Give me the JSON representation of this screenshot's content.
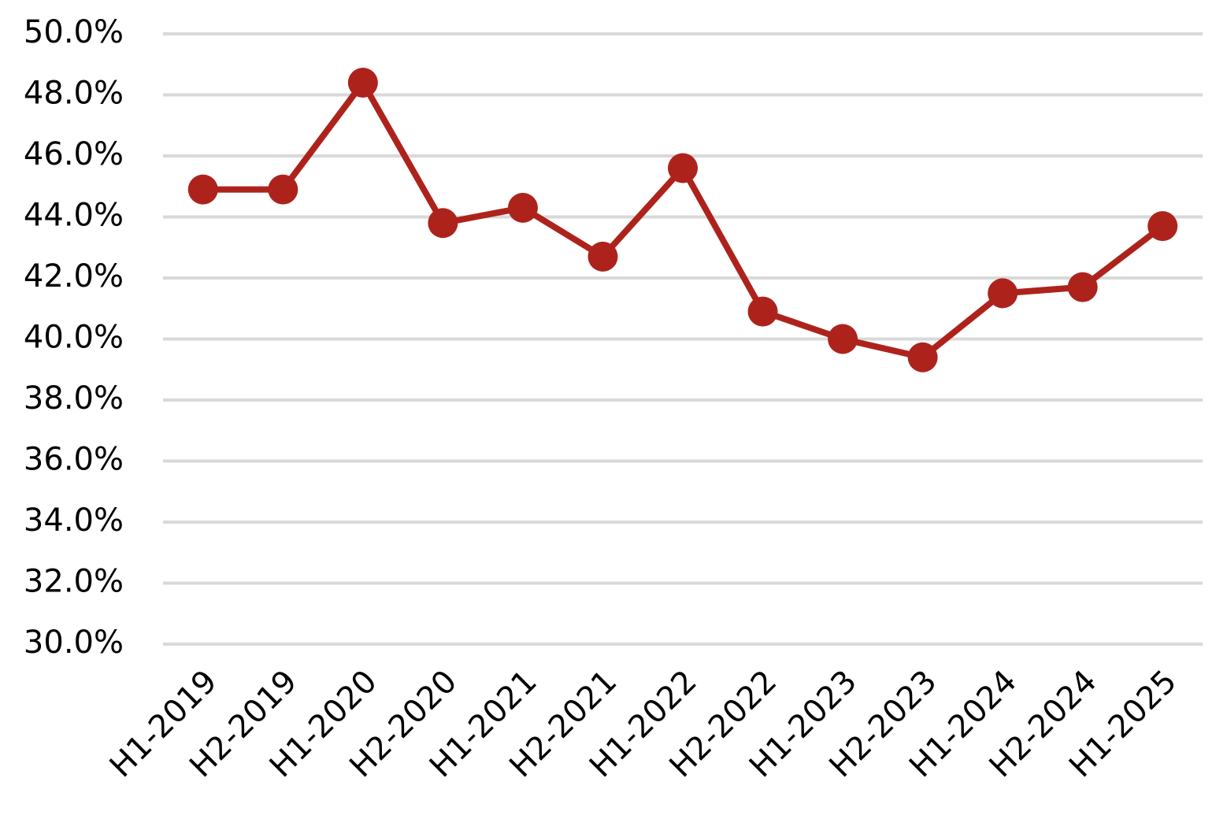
{
  "chart_data": {
    "type": "line",
    "categories": [
      "H1-2019",
      "H2-2019",
      "H1-2020",
      "H2-2020",
      "H1-2021",
      "H2-2021",
      "H1-2022",
      "H2-2022",
      "H1-2023",
      "H2-2023",
      "H1-2024",
      "H2-2024",
      "H1-2025"
    ],
    "values": [
      44.9,
      44.9,
      48.4,
      43.8,
      44.3,
      42.7,
      45.6,
      40.9,
      40.0,
      39.4,
      41.5,
      41.7,
      43.7
    ],
    "color": "#ad231c",
    "ylim": [
      30,
      50
    ],
    "yticks": [
      {
        "value": 30,
        "label": "30.0%"
      },
      {
        "value": 32,
        "label": "32.0%"
      },
      {
        "value": 34,
        "label": "34.0%"
      },
      {
        "value": 36,
        "label": "36.0%"
      },
      {
        "value": 38,
        "label": "38.0%"
      },
      {
        "value": 40,
        "label": "40.0%"
      },
      {
        "value": 42,
        "label": "42.0%"
      },
      {
        "value": 44,
        "label": "44.0%"
      },
      {
        "value": 46,
        "label": "46.0%"
      },
      {
        "value": 48,
        "label": "48.0%"
      },
      {
        "value": 50,
        "label": "50.0%"
      }
    ],
    "grid": true
  }
}
